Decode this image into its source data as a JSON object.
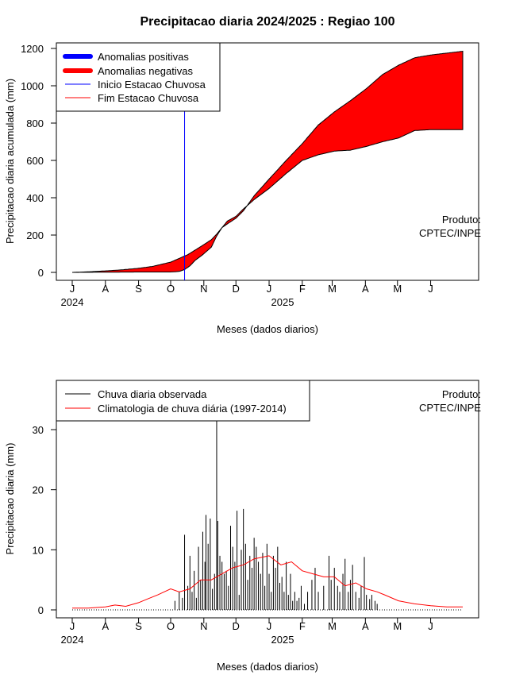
{
  "page": {
    "title": "Precipitacao diaria 2024/2025 : Regiao 100",
    "produto_line1": "Produto:",
    "produto_line2": "CPTEC/INPE"
  },
  "colors": {
    "positive": "#0000ff",
    "negative": "#ff0000",
    "inicio": "#0000ff",
    "fim": "#ff0000",
    "observed": "#000000",
    "climatology": "#ff0000"
  },
  "chart_data": [
    {
      "type": "area",
      "title": "Precipitacao diaria 2024/2025 : Regiao 100",
      "xlabel": "Meses (dados diarios)",
      "ylabel": "Precipitacao diaria acumulada (mm)",
      "ylim": [
        0,
        1220
      ],
      "yticks": [
        0,
        200,
        400,
        600,
        800,
        1000,
        1200
      ],
      "xticks": [
        "J",
        "A",
        "S",
        "O",
        "N",
        "D",
        "J",
        "F",
        "M",
        "A",
        "M",
        "J"
      ],
      "year_labels": [
        "2024",
        "2025"
      ],
      "legend": [
        "Anomalias positivas",
        "Anomalias negativas",
        "Inicio Estacao Chuvosa",
        "Fim Estacao Chuvosa"
      ],
      "legend_position": "top-left",
      "inicio_estacao_chuvosa_day": 105,
      "series": [
        {
          "name": "climatologia acumulada",
          "x": [
            0,
            15,
            31,
            45,
            62,
            75,
            92,
            100,
            108,
            115,
            122,
            130,
            135,
            140,
            145,
            153,
            160,
            170,
            184,
            200,
            215,
            230,
            245,
            260,
            275,
            290,
            305,
            320,
            335,
            350,
            365
          ],
          "y": [
            0,
            3,
            8,
            13,
            22,
            32,
            55,
            75,
            95,
            120,
            145,
            175,
            205,
            240,
            260,
            290,
            330,
            410,
            500,
            600,
            690,
            790,
            860,
            920,
            985,
            1060,
            1110,
            1150,
            1165,
            1175,
            1185
          ]
        },
        {
          "name": "chuva observada acumulada",
          "x": [
            0,
            30,
            60,
            92,
            100,
            105,
            110,
            115,
            122,
            130,
            135,
            140,
            145,
            153,
            160,
            170,
            184,
            200,
            215,
            230,
            245,
            260,
            275,
            290,
            305,
            320,
            335,
            350,
            365
          ],
          "y": [
            0,
            1,
            2,
            2,
            5,
            15,
            35,
            65,
            95,
            135,
            195,
            240,
            275,
            300,
            340,
            390,
            450,
            530,
            600,
            630,
            650,
            655,
            675,
            700,
            720,
            760,
            765,
            765,
            765
          ]
        }
      ]
    },
    {
      "type": "line",
      "xlabel": "Meses (dados diarios)",
      "ylabel": "Precipitacao diaria (mm)",
      "ylim": [
        -1.5,
        38
      ],
      "yticks": [
        0,
        10,
        20,
        30
      ],
      "xticks": [
        "J",
        "A",
        "S",
        "O",
        "N",
        "D",
        "J",
        "F",
        "M",
        "A",
        "M",
        "J"
      ],
      "year_labels": [
        "2024",
        "2025"
      ],
      "legend": [
        "Chuva diaria observada",
        "Climatologia de chuva diária (1997-2014)"
      ],
      "legend_position": "top-left",
      "series": [
        {
          "name": "Chuva diaria observada",
          "x": [
            96,
            100,
            103,
            105,
            108,
            110,
            112,
            114,
            116,
            118,
            120,
            122,
            124,
            125,
            127,
            129,
            131,
            133,
            135,
            136,
            138,
            140,
            142,
            144,
            146,
            148,
            150,
            152,
            154,
            156,
            158,
            160,
            162,
            164,
            166,
            168,
            170,
            172,
            174,
            176,
            178,
            180,
            182,
            184,
            186,
            188,
            190,
            192,
            194,
            196,
            198,
            200,
            202,
            204,
            206,
            208,
            210,
            212,
            214,
            217,
            220,
            224,
            227,
            230,
            235,
            240,
            242,
            245,
            248,
            250,
            253,
            255,
            258,
            260,
            262,
            265,
            268,
            270,
            273,
            275,
            278,
            280,
            283,
            285
          ],
          "y": [
            1.5,
            3,
            2,
            12.5,
            4,
            9,
            3,
            6.5,
            2,
            10.5,
            5,
            13,
            8,
            15.8,
            11,
            15.2,
            3.5,
            6,
            31.5,
            14.8,
            9,
            8,
            6,
            6.5,
            4,
            14,
            10.5,
            8,
            16.5,
            2.5,
            10,
            16.8,
            11,
            5,
            9,
            7,
            12,
            10.5,
            8,
            6,
            9.5,
            4,
            11,
            6,
            3,
            9,
            7,
            10.5,
            4.5,
            5.5,
            3,
            8,
            2.5,
            6,
            1.5,
            3,
            1.5,
            2,
            4,
            1,
            3,
            5,
            7,
            3,
            4,
            9,
            5,
            7,
            4,
            3,
            6,
            8.5,
            3,
            5,
            7.5,
            3,
            2,
            4,
            8.8,
            2.5,
            1.8,
            2.5,
            1.5,
            1
          ]
        },
        {
          "name": "Climatologia de chuva diária (1997-2014)",
          "x": [
            0,
            15,
            31,
            40,
            50,
            62,
            70,
            80,
            92,
            100,
            110,
            120,
            130,
            140,
            150,
            160,
            170,
            184,
            195,
            205,
            215,
            225,
            235,
            245,
            255,
            265,
            275,
            285,
            292,
            305,
            320,
            335,
            350,
            365
          ],
          "y": [
            0.3,
            0.3,
            0.5,
            0.8,
            0.6,
            1.2,
            1.8,
            2.5,
            3.5,
            3,
            3.5,
            5,
            5,
            6,
            7,
            7.5,
            8.5,
            9,
            7.5,
            8,
            6.5,
            6,
            5.5,
            5.5,
            4,
            4.5,
            3.5,
            3,
            2.5,
            1.5,
            1,
            0.7,
            0.5,
            0.5
          ]
        }
      ]
    }
  ],
  "legend_top": {
    "items": [
      {
        "label": "Anomalias positivas"
      },
      {
        "label": "Anomalias negativas"
      },
      {
        "label": "Inicio Estacao Chuvosa"
      },
      {
        "label": "Fim Estacao Chuvosa"
      }
    ]
  },
  "legend_bottom": {
    "items": [
      {
        "label": "Chuva diaria observada"
      },
      {
        "label": "Climatologia de chuva diária (1997-2014)"
      }
    ]
  }
}
